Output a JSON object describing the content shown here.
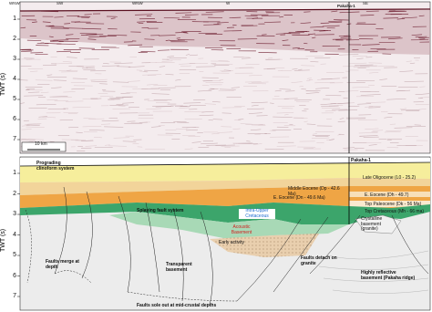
{
  "seismic_panel": {
    "direction_labels": [
      "WNW",
      "SW",
      "WNW",
      "W",
      "Pakaha-1",
      "SE"
    ],
    "axis_label": "TWT (s)",
    "ticks": [
      "1",
      "2",
      "3",
      "4",
      "5",
      "6",
      "7"
    ],
    "scale_bar": "10 km"
  },
  "interpretation_panel": {
    "axis_label": "TWT (s)",
    "ticks": [
      "1",
      "2",
      "3",
      "4",
      "5",
      "6",
      "7"
    ],
    "labels": [
      "Prograding clinoform system",
      "Pakaha-1",
      "Late Oligocene (L0 - 25.2)",
      "Middle Eocene (Dp - 42.6 Ma)",
      "E. Eocene (Dn - 49.6 Ma)",
      "E. Eocene (Dh - 49.7)",
      "Top Paleocene (Dk - 56 Ma)",
      "Top Cretaceous (Mh - 66 ma)",
      "Splaying fault system",
      "Intra-Upper Cretaceous",
      "Acoustic Basement",
      "Early activity",
      "Crystalline basement (granite)",
      "Faults detach on granite",
      "Faults merge at depth",
      "Transparent basement",
      "Highly reflective basement (Pakaha ridge)",
      "Faults sole out at mid-crustal depths"
    ]
  }
}
